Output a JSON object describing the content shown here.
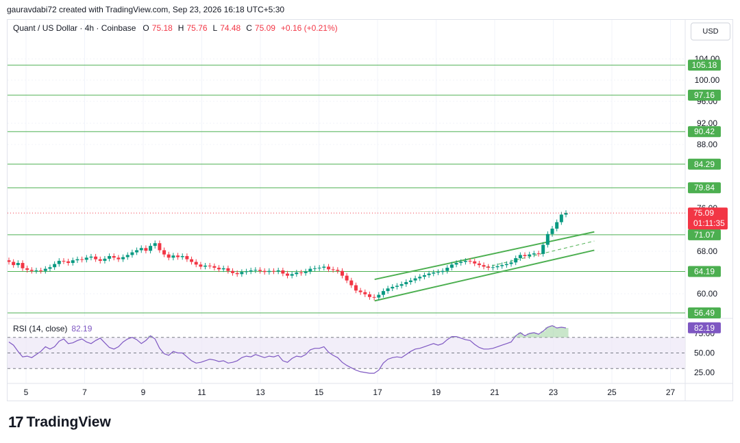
{
  "header": {
    "attribution": "gauravdabi72 created with TradingView.com, Sep 23, 2026 16:18 UTC+5:30"
  },
  "legend": {
    "symbol": "Quant / US Dollar · 4h · Coinbase",
    "o_label": "O",
    "o_value": "75.18",
    "h_label": "H",
    "h_value": "75.76",
    "l_label": "L",
    "l_value": "74.48",
    "c_label": "C",
    "c_value": "75.09",
    "change": "+0.16 (+0.21%)"
  },
  "currency": "USD",
  "brand": {
    "logo": "17",
    "name": "TradingView"
  },
  "chart_data": {
    "type": "candlestick",
    "price_axis": {
      "ticks": [
        "104.00",
        "100.00",
        "96.00",
        "92.00",
        "88.00",
        "76.00",
        "68.00",
        "60.00"
      ],
      "range": [
        55,
        107
      ]
    },
    "time_axis": {
      "labels": [
        "5",
        "7",
        "9",
        "11",
        "13",
        "15",
        "17",
        "19",
        "21",
        "23",
        "25",
        "27"
      ]
    },
    "horizontal_levels": [
      {
        "value": 105.18,
        "label": "105.18"
      },
      {
        "value": 97.16,
        "label": "97.16"
      },
      {
        "value": 90.42,
        "label": "90.42"
      },
      {
        "value": 84.29,
        "label": "84.29"
      },
      {
        "value": 79.84,
        "label": "79.84"
      },
      {
        "value": 71.07,
        "label": "71.07"
      },
      {
        "value": 64.19,
        "label": "64.19"
      },
      {
        "value": 56.49,
        "label": "56.49"
      }
    ],
    "last_price": {
      "value": 75.09,
      "label": "75.09",
      "countdown": "01:11:35"
    },
    "channel": {
      "upper": [
        [
          16.9,
          62.7
        ],
        [
          24.4,
          71.6
        ]
      ],
      "lower": [
        [
          16.9,
          58.7
        ],
        [
          24.4,
          68.2
        ]
      ],
      "mid": [
        [
          20.7,
          65.0
        ],
        [
          24.4,
          69.9
        ]
      ]
    },
    "candles_close": [
      66,
      65.4,
      65.8,
      64.8,
      64.5,
      64.3,
      64.4,
      64.3,
      64.7,
      65,
      65.6,
      66.2,
      66.1,
      65.8,
      66.3,
      66.5,
      66.4,
      66.8,
      67,
      66.5,
      66.2,
      66.6,
      67.1,
      66.8,
      66.5,
      66.9,
      67.3,
      67.8,
      68.2,
      68.6,
      68.1,
      69,
      69.5,
      68.2,
      67.4,
      66.8,
      67.2,
      66.9,
      67.1,
      66.5,
      66,
      65.5,
      65.1,
      65.3,
      65.2,
      64.9,
      64.6,
      64.8,
      64.3,
      63.9,
      63.7,
      64.1,
      64.2,
      64.4,
      64.5,
      64.3,
      64.1,
      64.3,
      64.2,
      64.4,
      63.8,
      63.4,
      63.7,
      64,
      63.9,
      64.2,
      64.7,
      64.8,
      64.9,
      65.1,
      64.6,
      64.5,
      64.3,
      63.4,
      62.5,
      61.6,
      60.6,
      60.3,
      59.9,
      59.4,
      59.3,
      59.8,
      60.5,
      61,
      61.3,
      61.5,
      61.8,
      62.2,
      62.5,
      62.9,
      63.2,
      63.5,
      63.8,
      64,
      64.1,
      64.3,
      64.9,
      65.5,
      65.8,
      66,
      66.2,
      66.1,
      65.7,
      65.4,
      65.1,
      64.9,
      65,
      65.2,
      65.4,
      65.6,
      65.9,
      66.7,
      67.3,
      67.1,
      67.4,
      67.6,
      67.5,
      69.2,
      71.2,
      72.2,
      73.4,
      74.8,
      75.1
    ],
    "rsi": {
      "label": "RSI (14, close)",
      "value": "82.19",
      "axis_ticks": [
        "75.00",
        "50.00",
        "25.00"
      ],
      "levels": [
        70,
        50,
        30
      ],
      "series": [
        64,
        60,
        52,
        45,
        46,
        44,
        48,
        52,
        58,
        55,
        58,
        65,
        68,
        62,
        63,
        66,
        68,
        64,
        62,
        66,
        69,
        63,
        57,
        55,
        58,
        64,
        68,
        70,
        67,
        62,
        66,
        72,
        68,
        56,
        49,
        47,
        52,
        50,
        50,
        45,
        40,
        37,
        38,
        40,
        42,
        41,
        39,
        40,
        37,
        38,
        40,
        44,
        46,
        45,
        48,
        46,
        44,
        46,
        45,
        47,
        40,
        38,
        43,
        46,
        45,
        48,
        54,
        56,
        56,
        58,
        51,
        47,
        44,
        38,
        34,
        31,
        28,
        26,
        25,
        24,
        24,
        28,
        37,
        42,
        44,
        45,
        44,
        48,
        52,
        55,
        56,
        58,
        60,
        62,
        60,
        62,
        67,
        71,
        71,
        69,
        67,
        66,
        61,
        57,
        55,
        55,
        56,
        58,
        60,
        62,
        64,
        72,
        76,
        72,
        75,
        76,
        74,
        78,
        83,
        85,
        82,
        83,
        82
      ]
    },
    "price_tick_positions_note": "",
    "colors": {
      "up": "#089981",
      "down": "#f23645",
      "level": "#4caf50",
      "rsi": "#7e57c2",
      "rsi_fill": "#ede7f6"
    }
  }
}
